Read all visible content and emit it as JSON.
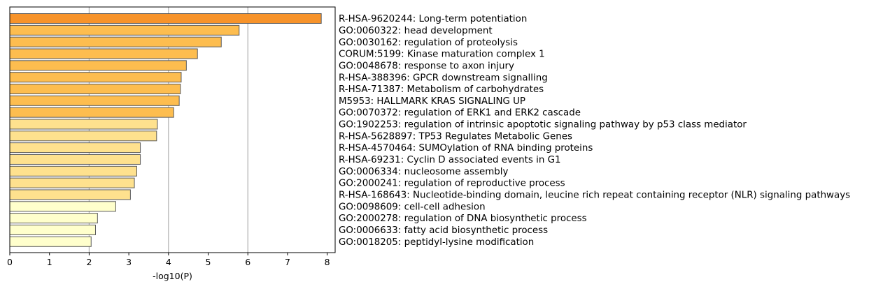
{
  "chart_data": {
    "type": "bar",
    "orientation": "horizontal",
    "xlabel": "-log10(P)",
    "ylabel": "",
    "title": "",
    "xlim": [
      0,
      8.2
    ],
    "xticks": [
      0,
      1,
      2,
      3,
      4,
      5,
      6,
      7,
      8
    ],
    "grid": "vertical lines at x = 2, 4, 6",
    "legend": "none",
    "categories": [
      "R-HSA-9620244: Long-term potentiation",
      "GO:0060322: head development",
      "GO:0030162: regulation of proteolysis",
      "CORUM:5199: Kinase maturation complex 1",
      "GO:0048678: response to axon injury",
      "R-HSA-388396: GPCR downstream signalling",
      "R-HSA-71387: Metabolism of carbohydrates",
      "M5953: HALLMARK KRAS SIGNALING UP",
      "GO:0070372: regulation of ERK1 and ERK2 cascade",
      "GO:1902253: regulation of intrinsic apoptotic signaling pathway by p53 class mediator",
      "R-HSA-5628897: TP53 Regulates Metabolic Genes",
      "R-HSA-4570464: SUMOylation of RNA binding proteins",
      "R-HSA-69231: Cyclin D associated events in G1",
      "GO:0006334: nucleosome assembly",
      "GO:2000241: regulation of reproductive process",
      "R-HSA-168643: Nucleotide-binding domain, leucine rich repeat containing receptor (NLR) signaling pathways",
      "GO:0098609: cell-cell adhesion",
      "GO:2000278: regulation of DNA biosynthetic process",
      "GO:0006633: fatty acid biosynthetic process",
      "GO:0018205: peptidyl-lysine modification"
    ],
    "values": [
      7.85,
      5.78,
      5.33,
      4.73,
      4.45,
      4.32,
      4.3,
      4.27,
      4.13,
      3.72,
      3.7,
      3.29,
      3.29,
      3.2,
      3.14,
      3.04,
      2.67,
      2.21,
      2.16,
      2.05
    ],
    "bar_colors": [
      "#f7932a",
      "#fdbd4f",
      "#fdbd4f",
      "#fdbd4f",
      "#fdbd4f",
      "#fdbd4f",
      "#fdbd4f",
      "#fdbd4f",
      "#fdbd4f",
      "#fee18e",
      "#fee18e",
      "#fee18e",
      "#fee18e",
      "#fee18e",
      "#fee18e",
      "#fee18e",
      "#ffffcc",
      "#ffffcc",
      "#ffffcc",
      "#ffffcc"
    ],
    "bar_edge_color": "#5a5a5a",
    "grid_color": "#b0b0b0"
  }
}
